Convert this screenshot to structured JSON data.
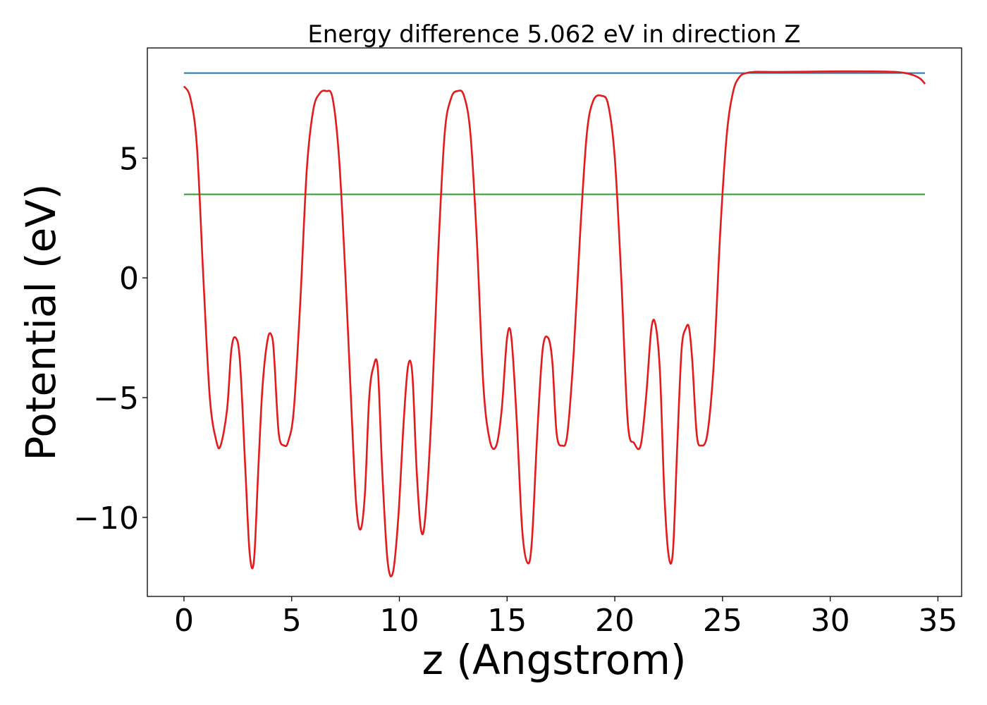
{
  "chart_data": {
    "type": "line",
    "title": "Energy difference 5.062 eV in direction Z",
    "xlabel": "z (Angstrom)",
    "ylabel": "Potential (eV)",
    "xlim": [
      -1.7,
      36.1
    ],
    "ylim": [
      -13.3,
      9.6
    ],
    "xticks": [
      0,
      5,
      10,
      15,
      20,
      25,
      30,
      35
    ],
    "xtick_labels": [
      "0",
      "5",
      "10",
      "15",
      "20",
      "25",
      "30",
      "35"
    ],
    "yticks": [
      5,
      0,
      -5,
      -10
    ],
    "ytick_labels": [
      "5",
      "0",
      "−5",
      "−10"
    ],
    "grid": false,
    "legend": "none",
    "series": [
      {
        "color": "#1f77b4",
        "x": [
          0,
          34.4
        ],
        "y": [
          8.55,
          8.55
        ]
      },
      {
        "color": "#2ca02c",
        "x": [
          0,
          34.4
        ],
        "y": [
          3.49,
          3.49
        ]
      },
      {
        "color": "#e41a1c",
        "x": [
          0,
          0.3,
          0.6,
          0.9,
          1.2,
          1.5,
          1.7,
          2.0,
          2.2,
          2.4,
          2.6,
          2.85,
          3.05,
          3.25,
          3.45,
          3.65,
          3.9,
          4.1,
          4.2,
          4.4,
          4.65,
          4.85,
          5.1,
          5.4,
          5.7,
          6.0,
          6.3,
          6.6,
          6.9,
          7.2,
          7.5,
          7.8,
          8.0,
          8.2,
          8.4,
          8.6,
          8.8,
          9.0,
          9.2,
          9.45,
          9.7,
          9.95,
          10.2,
          10.4,
          10.6,
          10.8,
          11.0,
          11.2,
          11.5,
          11.8,
          12.1,
          12.4,
          12.7,
          13.0,
          13.3,
          13.6,
          13.9,
          14.2,
          14.5,
          14.75,
          15.0,
          15.2,
          15.45,
          15.7,
          15.95,
          16.15,
          16.4,
          16.65,
          16.9,
          17.1,
          17.3,
          17.55,
          17.8,
          18.1,
          18.4,
          18.7,
          19.0,
          19.4,
          19.7,
          20.0,
          20.3,
          20.6,
          20.9,
          21.2,
          21.45,
          21.7,
          21.9,
          22.1,
          22.3,
          22.5,
          22.7,
          22.9,
          23.1,
          23.3,
          23.45,
          23.6,
          23.8,
          24.0,
          24.3,
          24.6,
          24.9,
          25.2,
          25.5,
          25.8,
          26.1,
          26.5,
          27.0,
          28.0,
          30.0,
          32.0,
          33.0,
          33.5,
          33.9,
          34.2,
          34.4
        ],
        "y": [
          8.0,
          7.5,
          5.5,
          0.0,
          -5.0,
          -6.8,
          -7.0,
          -5.5,
          -3.0,
          -2.5,
          -3.5,
          -8.0,
          -11.5,
          -11.8,
          -8.0,
          -4.5,
          -2.5,
          -2.5,
          -3.5,
          -6.5,
          -7.0,
          -6.8,
          -5.5,
          -1.0,
          4.5,
          7.0,
          7.7,
          7.8,
          7.5,
          5.0,
          0.0,
          -6.0,
          -9.5,
          -10.5,
          -9.0,
          -5.0,
          -3.7,
          -3.8,
          -8.0,
          -11.8,
          -12.3,
          -10.0,
          -6.0,
          -3.7,
          -4.0,
          -8.0,
          -10.5,
          -10.0,
          -5.5,
          1.0,
          6.0,
          7.5,
          7.8,
          7.6,
          6.0,
          1.5,
          -4.5,
          -6.8,
          -7.0,
          -5.5,
          -2.5,
          -2.5,
          -6.0,
          -10.5,
          -11.9,
          -11.0,
          -6.5,
          -3.0,
          -2.5,
          -3.5,
          -6.5,
          -7.0,
          -6.5,
          -3.0,
          2.0,
          6.0,
          7.4,
          7.6,
          7.2,
          5.0,
          0.0,
          -6.0,
          -6.9,
          -7.0,
          -5.0,
          -2.1,
          -2.0,
          -4.0,
          -9.0,
          -11.6,
          -11.4,
          -7.0,
          -3.0,
          -2.1,
          -2.1,
          -3.5,
          -6.5,
          -7.0,
          -6.5,
          -3.5,
          2.0,
          6.0,
          7.8,
          8.4,
          8.55,
          8.6,
          8.6,
          8.6,
          8.62,
          8.62,
          8.6,
          8.55,
          8.45,
          8.3,
          8.1
        ]
      }
    ]
  }
}
